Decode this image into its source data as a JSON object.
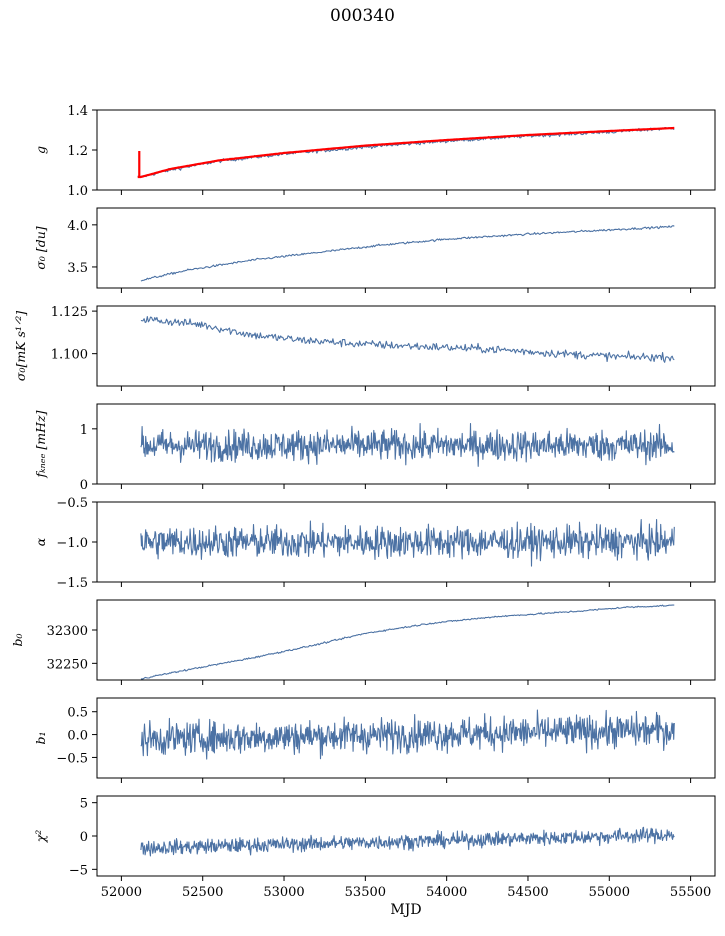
{
  "figure": {
    "title": "000340"
  },
  "colors": {
    "series": "#4c72a4",
    "overlay": "#ff0000",
    "axis": "#000000",
    "background": "#ffffff"
  },
  "chart_data": [
    {
      "type": "line",
      "ylabel": "g",
      "xlabel": "",
      "x_range": [
        52100,
        55400
      ],
      "xlim": [
        51850,
        55650
      ],
      "ylim": [
        1.0,
        1.4
      ],
      "yticks": [
        "1.0",
        "1.2",
        "1.4"
      ],
      "series": [
        {
          "kind": "trend",
          "points": [
            [
              52120,
              1.065
            ],
            [
              52300,
              1.1
            ],
            [
              52600,
              1.145
            ],
            [
              53000,
              1.18
            ],
            [
              53500,
              1.215
            ],
            [
              54000,
              1.245
            ],
            [
              54500,
              1.27
            ],
            [
              55000,
              1.29
            ],
            [
              55400,
              1.31
            ]
          ],
          "noise": 0.004
        },
        {
          "kind": "overlay",
          "points": [
            [
              52120,
              1.065
            ],
            [
              52300,
              1.105
            ],
            [
              52600,
              1.148
            ],
            [
              53000,
              1.185
            ],
            [
              53500,
              1.222
            ],
            [
              54000,
              1.25
            ],
            [
              54500,
              1.275
            ],
            [
              55000,
              1.295
            ],
            [
              55400,
              1.31
            ]
          ],
          "spike": [
            52110,
            1.065,
            1.195
          ]
        }
      ],
      "grid": false
    },
    {
      "type": "line",
      "ylabel": "σ₀ [du]",
      "xlabel": "",
      "x_range": [
        52120,
        55400
      ],
      "xlim": [
        51850,
        55650
      ],
      "ylim": [
        3.25,
        4.2
      ],
      "yticks": [
        "3.5",
        "4.0"
      ],
      "series": [
        {
          "kind": "trend",
          "points": [
            [
              52120,
              3.34
            ],
            [
              52400,
              3.46
            ],
            [
              52800,
              3.58
            ],
            [
              53200,
              3.67
            ],
            [
              53600,
              3.76
            ],
            [
              54000,
              3.83
            ],
            [
              54500,
              3.89
            ],
            [
              55000,
              3.94
            ],
            [
              55400,
              3.98
            ]
          ],
          "noise": 0.006
        }
      ],
      "grid": false
    },
    {
      "type": "line",
      "ylabel": "σ₀[mK s¹ᐟ²]",
      "xlabel": "",
      "x_range": [
        52120,
        55400
      ],
      "xlim": [
        51850,
        55650
      ],
      "ylim": [
        1.081,
        1.128
      ],
      "yticks": [
        "1.100",
        "1.125"
      ],
      "series": [
        {
          "kind": "trend",
          "points": [
            [
              52120,
              1.1205
            ],
            [
              52500,
              1.117
            ],
            [
              52800,
              1.111
            ],
            [
              53100,
              1.108
            ],
            [
              53500,
              1.1055
            ],
            [
              53900,
              1.104
            ],
            [
              54300,
              1.1025
            ],
            [
              54700,
              1.1
            ],
            [
              55100,
              1.098
            ],
            [
              55400,
              1.098
            ]
          ],
          "noise": 0.0012
        }
      ],
      "grid": false
    },
    {
      "type": "line",
      "ylabel": "fₖₙₑₑ [mHz]",
      "xlabel": "",
      "x_range": [
        52120,
        55400
      ],
      "xlim": [
        51850,
        55650
      ],
      "ylim": [
        0,
        1.45
      ],
      "yticks": [
        "0",
        "1"
      ],
      "series": [
        {
          "kind": "noise",
          "mean": 0.7,
          "amplitude": 0.14,
          "max": 1.3
        }
      ],
      "grid": false
    },
    {
      "type": "line",
      "ylabel": "α",
      "xlabel": "",
      "x_range": [
        52120,
        55400
      ],
      "xlim": [
        51850,
        55650
      ],
      "ylim": [
        -1.5,
        -0.5
      ],
      "yticks": [
        "−1.5",
        "−1.0",
        "−0.5"
      ],
      "series": [
        {
          "kind": "noise",
          "mean": -1.0,
          "amplitude": 0.1,
          "min": -1.45,
          "max": -0.72
        }
      ],
      "grid": false
    },
    {
      "type": "line",
      "ylabel": "b₀",
      "xlabel": "",
      "x_range": [
        52120,
        55400
      ],
      "xlim": [
        51850,
        55650
      ],
      "ylim": [
        32225,
        32345
      ],
      "yticks": [
        "32250",
        "32300"
      ],
      "series": [
        {
          "kind": "trend",
          "points": [
            [
              52120,
              32227
            ],
            [
              52400,
              32240
            ],
            [
              52800,
              32258
            ],
            [
              53200,
              32278
            ],
            [
              53500,
              32295
            ],
            [
              53900,
              32310
            ],
            [
              54300,
              32320
            ],
            [
              54800,
              32328
            ],
            [
              55100,
              32334
            ],
            [
              55400,
              32337
            ]
          ],
          "noise": 0.6
        }
      ],
      "grid": false
    },
    {
      "type": "line",
      "ylabel": "b₁",
      "xlabel": "",
      "x_range": [
        52120,
        55400
      ],
      "xlim": [
        51850,
        55650
      ],
      "ylim": [
        -0.95,
        0.8
      ],
      "yticks": [
        "−0.5",
        "0.0",
        "0.5"
      ],
      "series": [
        {
          "kind": "noise",
          "mean": -0.1,
          "slope": 0.2,
          "amplitude": 0.18,
          "min": -0.85,
          "max": 0.68
        }
      ],
      "grid": false
    },
    {
      "type": "line",
      "ylabel": "χ²",
      "xlabel": "MJD",
      "x_range": [
        52120,
        55400
      ],
      "xlim": [
        51850,
        55650
      ],
      "ylim": [
        -6,
        6
      ],
      "yticks": [
        "−5",
        "0",
        "5"
      ],
      "xticks": [
        "52000",
        "52500",
        "53000",
        "53500",
        "54000",
        "54500",
        "55000",
        "55500"
      ],
      "series": [
        {
          "kind": "noise",
          "mean": -1.8,
          "slope": 2.0,
          "amplitude": 0.55,
          "min": -3.8,
          "max": 2.0
        }
      ],
      "grid": false
    }
  ]
}
